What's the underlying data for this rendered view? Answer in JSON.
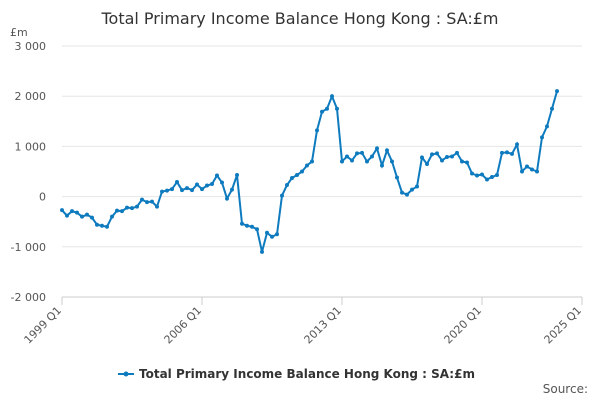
{
  "chart_data": {
    "type": "line",
    "title": "Total Primary Income Balance Hong Kong : SA:£m",
    "y_label": "£m",
    "source": "Source:",
    "categories": [
      "1999 Q1",
      null,
      null,
      null,
      null,
      null,
      null,
      null,
      null,
      null,
      null,
      null,
      null,
      null,
      null,
      null,
      null,
      null,
      null,
      null,
      null,
      null,
      null,
      null,
      null,
      null,
      null,
      null,
      "2006 Q1",
      null,
      null,
      null,
      null,
      null,
      null,
      null,
      null,
      null,
      null,
      null,
      null,
      null,
      null,
      null,
      null,
      null,
      null,
      null,
      null,
      null,
      null,
      null,
      null,
      null,
      null,
      null,
      "2013 Q1",
      null,
      null,
      null,
      null,
      null,
      null,
      null,
      null,
      null,
      null,
      null,
      null,
      null,
      null,
      null,
      null,
      null,
      null,
      null,
      null,
      null,
      null,
      null,
      null,
      null,
      null,
      null,
      "2020 Q1",
      null,
      null,
      null,
      null,
      null,
      null,
      null,
      null,
      null,
      null,
      null,
      null,
      null,
      null,
      null,
      null,
      null,
      null,
      null,
      "2025 Q1"
    ],
    "series": [
      {
        "name": "Total Primary Income Balance Hong Kong : SA:£m",
        "color": "#0f7bbf",
        "values": [
          -270,
          -380,
          -290,
          -320,
          -400,
          -360,
          -420,
          -560,
          -580,
          -600,
          -400,
          -280,
          -290,
          -220,
          -230,
          -200,
          -60,
          -110,
          -100,
          -200,
          100,
          120,
          150,
          290,
          130,
          170,
          130,
          240,
          150,
          220,
          250,
          420,
          280,
          -40,
          140,
          430,
          -540,
          -580,
          -600,
          -650,
          -1100,
          -720,
          -800,
          -750,
          20,
          230,
          370,
          430,
          500,
          620,
          700,
          1320,
          1690,
          1750,
          2000,
          1750,
          700,
          800,
          720,
          860,
          870,
          700,
          800,
          960,
          620,
          920,
          700,
          380,
          80,
          40,
          140,
          200,
          780,
          650,
          840,
          860,
          720,
          790,
          800,
          870,
          700,
          680,
          460,
          420,
          440,
          340,
          390,
          430,
          870,
          880,
          850,
          1040,
          500,
          600,
          540,
          500,
          1180,
          1400,
          1750,
          2100,
          null,
          null,
          null,
          null,
          null
        ]
      }
    ],
    "ylim": [
      -2000,
      3000
    ],
    "yticks": [
      {
        "value": -2000,
        "label": "-2 000"
      },
      {
        "value": -1000,
        "label": "-1 000"
      },
      0,
      {
        "value": 1000,
        "label": "1 000"
      },
      {
        "value": 2000,
        "label": "2 000"
      },
      {
        "value": 3000,
        "label": "3 000"
      }
    ],
    "grid": true,
    "legend": "bottom"
  }
}
